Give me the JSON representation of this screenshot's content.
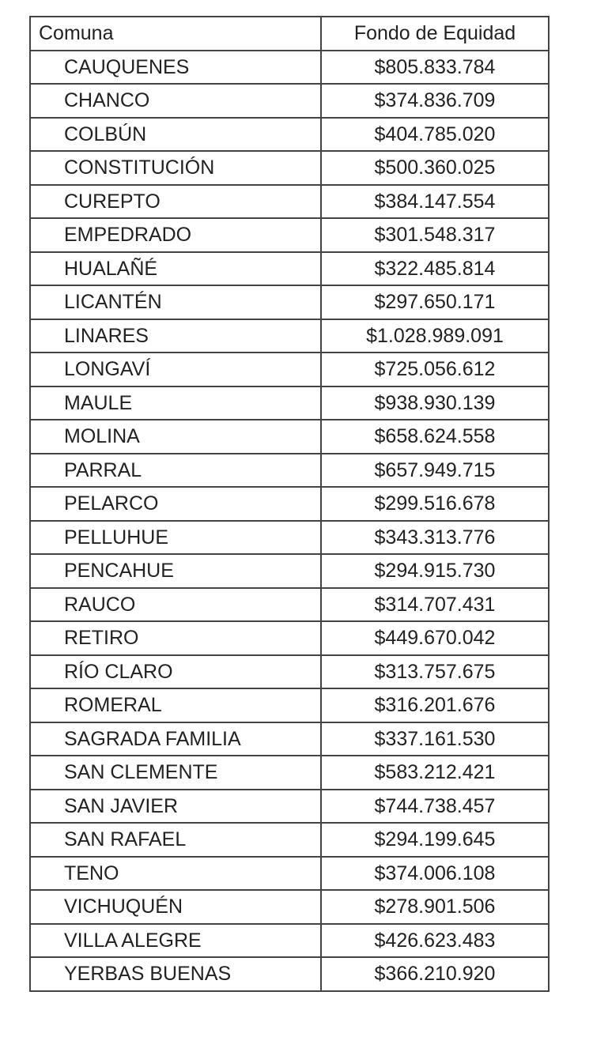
{
  "table": {
    "headers": [
      "Comuna",
      "Fondo de Equidad"
    ],
    "rows": [
      [
        "CAUQUENES",
        "$805.833.784"
      ],
      [
        "CHANCO",
        "$374.836.709"
      ],
      [
        "COLBÚN",
        "$404.785.020"
      ],
      [
        "CONSTITUCIÓN",
        "$500.360.025"
      ],
      [
        "CUREPTO",
        "$384.147.554"
      ],
      [
        "EMPEDRADO",
        "$301.548.317"
      ],
      [
        "HUALAÑÉ",
        "$322.485.814"
      ],
      [
        "LICANTÉN",
        "$297.650.171"
      ],
      [
        "LINARES",
        "$1.028.989.091"
      ],
      [
        "LONGAVÍ",
        "$725.056.612"
      ],
      [
        "MAULE",
        "$938.930.139"
      ],
      [
        "MOLINA",
        "$658.624.558"
      ],
      [
        "PARRAL",
        "$657.949.715"
      ],
      [
        "PELARCO",
        "$299.516.678"
      ],
      [
        "PELLUHUE",
        "$343.313.776"
      ],
      [
        "PENCAHUE",
        "$294.915.730"
      ],
      [
        "RAUCO",
        "$314.707.431"
      ],
      [
        "RETIRO",
        "$449.670.042"
      ],
      [
        "RÍO CLARO",
        "$313.757.675"
      ],
      [
        "ROMERAL",
        "$316.201.676"
      ],
      [
        "SAGRADA FAMILIA",
        "$337.161.530"
      ],
      [
        "SAN CLEMENTE",
        "$583.212.421"
      ],
      [
        "SAN JAVIER",
        "$744.738.457"
      ],
      [
        "SAN RAFAEL",
        "$294.199.645"
      ],
      [
        "TENO",
        "$374.006.108"
      ],
      [
        "VICHUQUÉN",
        "$278.901.506"
      ],
      [
        "VILLA ALEGRE",
        "$426.623.483"
      ],
      [
        "YERBAS BUENAS",
        "$366.210.920"
      ]
    ]
  }
}
